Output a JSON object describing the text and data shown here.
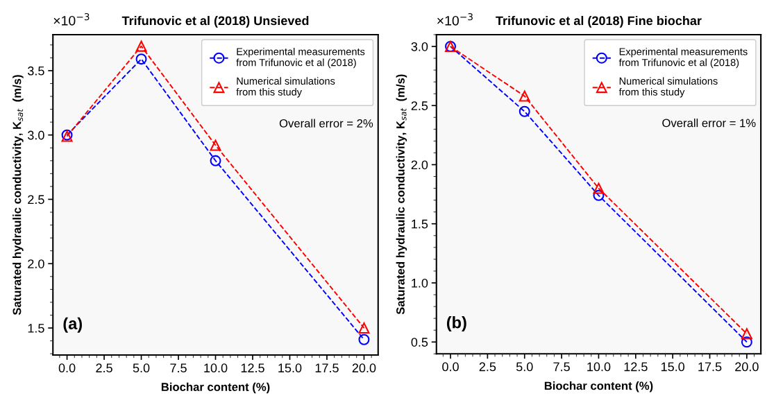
{
  "chart_data": [
    {
      "type": "line",
      "title": "Trifunovic et al (2018) Unsieved",
      "xlabel": "Biochar content (%)",
      "ylabel": "Saturated hydraulic conductivity, K$_{sat}$  (m/s)",
      "x": [
        0,
        5,
        10,
        20
      ],
      "series": [
        {
          "name": "Experimental measurements\nfrom Trifunovic et al (2018)",
          "color": "#0000ff",
          "marker": "circle",
          "line_style": "dashed",
          "values": [
            3.0,
            3.59,
            2.8,
            1.41
          ]
        },
        {
          "name": "Numerical simulations\nfrom this study",
          "color": "#ff0000",
          "marker": "triangle",
          "line_style": "dashed",
          "values": [
            2.99,
            3.69,
            2.92,
            1.5
          ]
        }
      ],
      "xlim": [
        -0.95,
        20.95
      ],
      "xticks": [
        {
          "value": 0,
          "label": "0.0"
        },
        2.5,
        {
          "value": 5,
          "label": "5.0"
        },
        7.5,
        {
          "value": 10,
          "label": "10.0"
        },
        12.5,
        {
          "value": 15,
          "label": "15.0"
        },
        17.5,
        {
          "value": 20,
          "label": "20.0"
        }
      ],
      "ylim": [
        1.29,
        3.78
      ],
      "yticks": [
        1.5,
        {
          "value": 2,
          "label": "2.0"
        },
        2.5,
        {
          "value": 3,
          "label": "3.0"
        },
        3.5
      ],
      "annotations": [
        "×10$^{−3}$",
        "(a)",
        "Overall error = 2%"
      ],
      "legend": "top right",
      "grid": false
    },
    {
      "type": "line",
      "title": "Trifunovic et al (2018) Fine biochar",
      "xlabel": "Biochar content (%)",
      "ylabel": "Saturated hydraulic conductivity, K$_{sat}$  (m/s)",
      "x": [
        0,
        5,
        10,
        20
      ],
      "series": [
        {
          "name": "Experimental measurements\nfrom Trifunovic et al (2018)",
          "color": "#0000ff",
          "marker": "circle",
          "line_style": "dashed",
          "values": [
            3.0,
            2.45,
            1.74,
            0.5
          ]
        },
        {
          "name": "Numerical simulations\nfrom this study",
          "color": "#ff0000",
          "marker": "triangle",
          "line_style": "dashed",
          "values": [
            3.0,
            2.58,
            1.8,
            0.57
          ]
        }
      ],
      "xlim": [
        -0.95,
        20.95
      ],
      "xticks": [
        {
          "value": 0,
          "label": "0.0"
        },
        2.5,
        {
          "value": 5,
          "label": "5.0"
        },
        7.5,
        {
          "value": 10,
          "label": "10.0"
        },
        12.5,
        {
          "value": 15,
          "label": "15.0"
        },
        17.5,
        {
          "value": 20,
          "label": "20.0"
        }
      ],
      "ylim": [
        0.4,
        3.1
      ],
      "yticks": [
        0.5,
        {
          "value": 1,
          "label": "1.0"
        },
        1.5,
        {
          "value": 2,
          "label": "2.0"
        },
        2.5,
        {
          "value": 3,
          "label": "3.0"
        }
      ],
      "annotations": [
        "×10$^{−3}$",
        "(b)",
        "Overall error = 1%"
      ],
      "legend": "top right",
      "grid": false
    }
  ]
}
